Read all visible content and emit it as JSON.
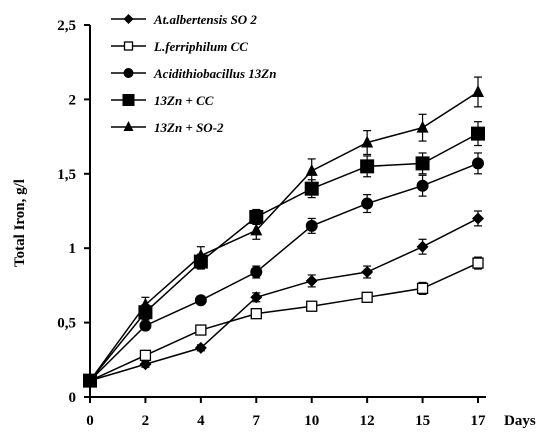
{
  "chart_data": {
    "type": "line",
    "xlabel": "Days",
    "ylabel": "Total Iron, g/l",
    "x": [
      0,
      2,
      4,
      7,
      10,
      12,
      15,
      17
    ],
    "x_tick_labels": [
      "0",
      "2",
      "4",
      "7",
      "10",
      "12",
      "15",
      "17"
    ],
    "x_scale": "categorical-evenly-spaced",
    "ylim": [
      0,
      2.5
    ],
    "y_ticks": [
      0,
      0.5,
      1,
      1.5,
      2,
      2.5
    ],
    "y_tick_labels": [
      "0",
      "0,5",
      "1",
      "1,5",
      "2",
      "2,5"
    ],
    "grid": false,
    "legend_position": "top-left",
    "series": [
      {
        "name": "At.albertensis SO 2",
        "marker": "filled-diamond",
        "values": [
          0.11,
          0.22,
          0.33,
          0.67,
          0.78,
          0.84,
          1.01,
          1.2
        ],
        "errors": [
          0.02,
          0.02,
          0.02,
          0.03,
          0.04,
          0.04,
          0.05,
          0.05
        ]
      },
      {
        "name": "L.ferriphilum CC",
        "marker": "open-square",
        "values": [
          0.11,
          0.28,
          0.45,
          0.56,
          0.61,
          0.67,
          0.73,
          0.9
        ],
        "errors": [
          0.02,
          0.02,
          0.03,
          0.03,
          0.03,
          0.03,
          0.04,
          0.04
        ]
      },
      {
        "name": "Acidithiobacillus 13Zn",
        "marker": "filled-circle",
        "values": [
          0.11,
          0.48,
          0.65,
          0.84,
          1.15,
          1.3,
          1.42,
          1.57
        ],
        "errors": [
          0.02,
          0.03,
          0.02,
          0.04,
          0.05,
          0.06,
          0.07,
          0.07
        ]
      },
      {
        "name": "13Zn + CC",
        "marker": "filled-square",
        "values": [
          0.11,
          0.57,
          0.91,
          1.21,
          1.4,
          1.55,
          1.57,
          1.77
        ],
        "errors": [
          0.02,
          0.05,
          0.05,
          0.05,
          0.06,
          0.07,
          0.07,
          0.08
        ]
      },
      {
        "name": "13Zn + SO-2",
        "marker": "filled-triangle",
        "values": [
          0.11,
          0.62,
          0.95,
          1.12,
          1.52,
          1.71,
          1.81,
          2.05
        ],
        "errors": [
          0.02,
          0.05,
          0.06,
          0.06,
          0.08,
          0.08,
          0.09,
          0.1
        ]
      }
    ]
  }
}
